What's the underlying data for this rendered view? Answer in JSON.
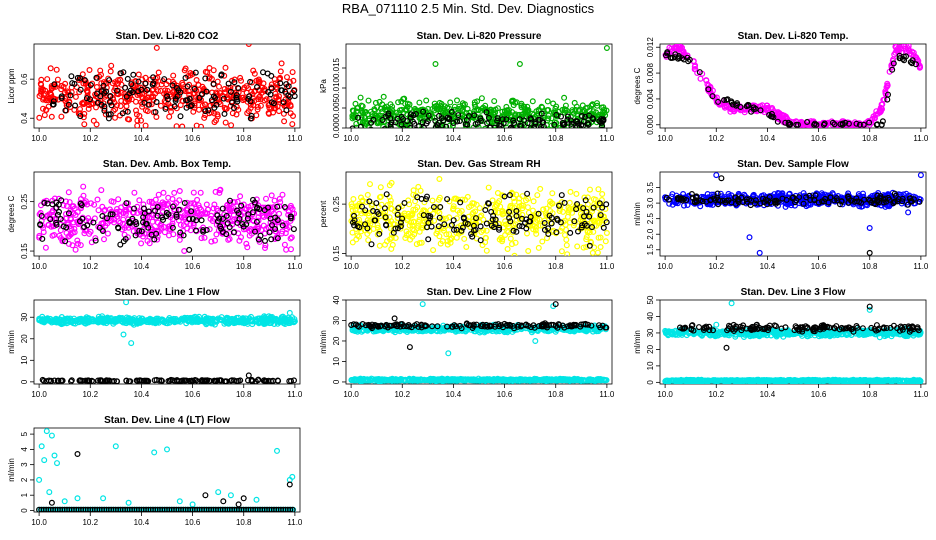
{
  "page_title": "RBA_071110  2.5 Min. Std. Dev. Diagnostics",
  "chart_data": [
    {
      "type": "scatter",
      "title": "Stan. Dev. Li-820 CO2",
      "ylabel": "Licor ppm",
      "xlim": [
        9.98,
        11.02
      ],
      "ylim": [
        0.35,
        0.78
      ],
      "yticks": [
        "0.4",
        "0.6"
      ],
      "ytick_values": [
        0.4,
        0.6
      ],
      "xticks": [
        "10.0",
        "10.2",
        "10.4",
        "10.6",
        "10.8",
        "11.0"
      ],
      "series": [
        {
          "name": "main",
          "color": "#ff0000",
          "pattern": {
            "type": "noise",
            "center": 0.52,
            "spread": 0.1,
            "outliers": [
              [
                10.82,
                0.78
              ],
              [
                10.99,
                0.37
              ],
              [
                10.46,
                0.76
              ]
            ]
          }
        },
        {
          "name": "black",
          "color": "#000000",
          "pattern": {
            "type": "noise",
            "center": 0.52,
            "spread": 0.08
          }
        }
      ]
    },
    {
      "type": "scatter",
      "title": "Stan. Dev. Li-820 Pressure",
      "ylabel": "kPa",
      "xlim": [
        9.98,
        11.02
      ],
      "ylim": [
        0,
        0.021
      ],
      "yticks": [
        "0.000",
        "0.005",
        "0.010",
        "0.015"
      ],
      "ytick_values": [
        0,
        0.005,
        0.01,
        0.015
      ],
      "xticks": [
        "10.0",
        "10.2",
        "10.4",
        "10.6",
        "10.8",
        "11.0"
      ],
      "series": [
        {
          "name": "main",
          "color": "#00b000",
          "pattern": {
            "type": "noise",
            "center": 0.003,
            "spread": 0.003,
            "outliers": [
              [
                10.33,
                0.016
              ],
              [
                10.66,
                0.016
              ],
              [
                11.0,
                0.02
              ]
            ]
          }
        },
        {
          "name": "black",
          "color": "#000000",
          "pattern": {
            "type": "noise",
            "center": 0.0015,
            "spread": 0.0015
          }
        }
      ]
    },
    {
      "type": "scatter",
      "title": "Stan. Dev. Li-820 Temp.",
      "ylabel": "degrees C",
      "xlim": [
        9.98,
        11.02
      ],
      "ylim": [
        -0.0005,
        0.0125
      ],
      "yticks": [
        "0.000",
        "0.004",
        "0.008",
        "0.012"
      ],
      "ytick_values": [
        0,
        0.004,
        0.008,
        0.012
      ],
      "xticks": [
        "10.0",
        "10.2",
        "10.4",
        "10.6",
        "10.8",
        "11.0"
      ],
      "series": [
        {
          "name": "main",
          "color": "#ff00ff",
          "pattern": {
            "type": "curve",
            "points": [
              [
                10.0,
                0.011
              ],
              [
                10.05,
                0.012
              ],
              [
                10.1,
                0.01
              ],
              [
                10.15,
                0.007
              ],
              [
                10.2,
                0.004
              ],
              [
                10.25,
                0.0025
              ],
              [
                10.4,
                0.0025
              ],
              [
                10.5,
                0.0
              ],
              [
                10.8,
                0.0
              ],
              [
                10.85,
                0.003
              ],
              [
                10.9,
                0.0115
              ],
              [
                10.95,
                0.012
              ],
              [
                11.0,
                0.009
              ]
            ],
            "spread": 0.0012
          }
        },
        {
          "name": "black",
          "color": "#000000",
          "pattern": {
            "type": "curve",
            "points": [
              [
                10.0,
                0.011
              ],
              [
                10.1,
                0.01
              ],
              [
                10.2,
                0.004
              ],
              [
                10.3,
                0.003
              ],
              [
                10.5,
                0.0
              ],
              [
                10.85,
                0.0
              ],
              [
                10.9,
                0.011
              ],
              [
                11.0,
                0.009
              ]
            ],
            "spread": 0.0009
          }
        }
      ]
    },
    {
      "type": "scatter",
      "title": "Stan. Dev. Amb. Box Temp.",
      "ylabel": "degrees C",
      "xlim": [
        9.98,
        11.02
      ],
      "ylim": [
        0.14,
        0.31
      ],
      "yticks": [
        "0.15",
        "0.25"
      ],
      "ytick_values": [
        0.15,
        0.25
      ],
      "xticks": [
        "10.0",
        "10.2",
        "10.4",
        "10.6",
        "10.8",
        "11.0"
      ],
      "series": [
        {
          "name": "main",
          "color": "#ff00ff",
          "pattern": {
            "type": "noise",
            "center": 0.215,
            "spread": 0.04
          }
        },
        {
          "name": "black",
          "color": "#000000",
          "pattern": {
            "type": "noise",
            "center": 0.21,
            "spread": 0.035
          }
        }
      ]
    },
    {
      "type": "scatter",
      "title": "Stan. Dev. Gas Stream RH",
      "ylabel": "percent",
      "xlim": [
        9.98,
        11.02
      ],
      "ylim": [
        0.145,
        0.315
      ],
      "yticks": [
        "0.15",
        "0.25"
      ],
      "ytick_values": [
        0.15,
        0.25
      ],
      "xticks": [
        "10.0",
        "10.2",
        "10.4",
        "10.6",
        "10.8",
        "11.0"
      ],
      "series": [
        {
          "name": "main",
          "color": "#ffff00",
          "pattern": {
            "type": "noise",
            "center": 0.22,
            "spread": 0.045
          }
        },
        {
          "name": "black",
          "color": "#000000",
          "pattern": {
            "type": "noise",
            "center": 0.22,
            "spread": 0.035
          }
        }
      ]
    },
    {
      "type": "scatter",
      "title": "Stan. Dev. Sample Flow",
      "ylabel": "ml/min",
      "xlim": [
        9.98,
        11.02
      ],
      "ylim": [
        1.3,
        4.0
      ],
      "yticks": [
        "1.5",
        "2.0",
        "2.5",
        "3.0",
        "3.5"
      ],
      "ytick_values": [
        1.5,
        2.0,
        2.5,
        3.0,
        3.5
      ],
      "xticks": [
        "10.0",
        "10.2",
        "10.4",
        "10.6",
        "10.8",
        "11.0"
      ],
      "series": [
        {
          "name": "main",
          "color": "#0000ff",
          "pattern": {
            "type": "noise",
            "center": 3.1,
            "spread": 0.15,
            "outliers": [
              [
                10.2,
                3.9
              ],
              [
                10.33,
                1.9
              ],
              [
                10.37,
                1.4
              ],
              [
                10.8,
                2.2
              ],
              [
                10.95,
                2.7
              ],
              [
                11.0,
                3.9
              ]
            ]
          }
        },
        {
          "name": "black",
          "color": "#000000",
          "pattern": {
            "type": "noise",
            "center": 3.1,
            "spread": 0.12,
            "outliers": [
              [
                10.22,
                3.8
              ],
              [
                10.8,
                1.4
              ]
            ]
          }
        }
      ]
    },
    {
      "type": "scatter",
      "title": "Stan. Dev. Line 1 Flow",
      "ylabel": "ml/min",
      "xlim": [
        9.98,
        11.02
      ],
      "ylim": [
        -1,
        38
      ],
      "yticks": [
        "0",
        "10",
        "20",
        "30"
      ],
      "ytick_values": [
        0,
        10,
        20,
        30
      ],
      "xticks": [
        "10.0",
        "10.2",
        "10.4",
        "10.6",
        "10.8",
        "11.0"
      ],
      "series": [
        {
          "name": "main",
          "color": "#00e5e5",
          "pattern": {
            "type": "noise",
            "center": 28.5,
            "spread": 1.2,
            "outliers": [
              [
                10.34,
                37
              ],
              [
                10.36,
                18
              ],
              [
                10.33,
                22
              ],
              [
                10.98,
                32
              ]
            ]
          }
        },
        {
          "name": "black",
          "color": "#000000",
          "pattern": {
            "type": "noise",
            "center": 0.5,
            "spread": 0.3,
            "outliers": [
              [
                10.82,
                3
              ]
            ]
          }
        }
      ]
    },
    {
      "type": "scatter",
      "title": "Stan. Dev. Line 2 Flow",
      "ylabel": "ml/min",
      "xlim": [
        9.98,
        11.02
      ],
      "ylim": [
        -1,
        40
      ],
      "yticks": [
        "0",
        "10",
        "20",
        "30",
        "40"
      ],
      "ytick_values": [
        0,
        10,
        20,
        30,
        40
      ],
      "xticks": [
        "10.0",
        "10.2",
        "10.4",
        "10.6",
        "10.8",
        "11.0"
      ],
      "series": [
        {
          "name": "cyan_high",
          "color": "#00e5e5",
          "pattern": {
            "type": "noise",
            "center": 26,
            "spread": 1.2,
            "outliers": [
              [
                10.28,
                38
              ],
              [
                10.38,
                14
              ],
              [
                10.72,
                20
              ],
              [
                10.79,
                37
              ]
            ]
          }
        },
        {
          "name": "cyan_low",
          "color": "#00e5e5",
          "pattern": {
            "type": "noise",
            "center": 1.0,
            "spread": 0.4
          }
        },
        {
          "name": "black",
          "color": "#000000",
          "pattern": {
            "type": "noise",
            "center": 27.5,
            "spread": 0.8,
            "outliers": [
              [
                10.23,
                17
              ],
              [
                10.17,
                31
              ],
              [
                10.8,
                38
              ]
            ]
          }
        }
      ]
    },
    {
      "type": "scatter",
      "title": "Stan. Dev. Line 3 Flow",
      "ylabel": "ml/min",
      "xlim": [
        9.98,
        11.02
      ],
      "ylim": [
        -1,
        50
      ],
      "yticks": [
        "0",
        "10",
        "20",
        "30",
        "40",
        "50"
      ],
      "ytick_values": [
        0,
        10,
        20,
        30,
        40,
        50
      ],
      "xticks": [
        "10.0",
        "10.2",
        "10.4",
        "10.6",
        "10.8",
        "11.0"
      ],
      "series": [
        {
          "name": "cyan_high",
          "color": "#00e5e5",
          "pattern": {
            "type": "noise",
            "center": 30,
            "spread": 1.5,
            "outliers": [
              [
                10.26,
                48
              ],
              [
                10.2,
                35
              ],
              [
                10.8,
                44
              ]
            ]
          }
        },
        {
          "name": "cyan_low",
          "color": "#00e5e5",
          "pattern": {
            "type": "noise",
            "center": 1.0,
            "spread": 0.4
          }
        },
        {
          "name": "black",
          "color": "#000000",
          "pattern": {
            "type": "noise",
            "center": 33,
            "spread": 1.5,
            "outliers": [
              [
                10.24,
                21
              ],
              [
                10.8,
                46
              ]
            ]
          }
        }
      ]
    },
    {
      "type": "scatter",
      "title": "Stan. Dev. Line 4 (LT) Flow",
      "ylabel": "ml/min",
      "xlim": [
        9.98,
        11.02
      ],
      "ylim": [
        -0.1,
        5.4
      ],
      "yticks": [
        "0",
        "1",
        "2",
        "3",
        "4",
        "5"
      ],
      "ytick_values": [
        0,
        1,
        2,
        3,
        4,
        5
      ],
      "xticks": [
        "10.0",
        "10.2",
        "10.4",
        "10.6",
        "10.8",
        "11.0"
      ],
      "series": [
        {
          "name": "main",
          "color": "#00e5e5",
          "pattern": {
            "type": "sparse",
            "base": 0.05,
            "points": [
              [
                10.0,
                2.0
              ],
              [
                10.01,
                4.2
              ],
              [
                10.02,
                3.3
              ],
              [
                10.03,
                5.2
              ],
              [
                10.05,
                4.9
              ],
              [
                10.06,
                3.6
              ],
              [
                10.07,
                3.1
              ],
              [
                10.04,
                1.2
              ],
              [
                10.1,
                0.6
              ],
              [
                10.15,
                0.8
              ],
              [
                10.25,
                0.8
              ],
              [
                10.3,
                4.2
              ],
              [
                10.45,
                3.8
              ],
              [
                10.5,
                4.0
              ],
              [
                10.55,
                0.6
              ],
              [
                10.6,
                0.4
              ],
              [
                10.75,
                1.0
              ],
              [
                10.85,
                0.7
              ],
              [
                10.93,
                3.9
              ],
              [
                10.98,
                2.0
              ],
              [
                10.99,
                2.2
              ],
              [
                10.35,
                0.5
              ],
              [
                10.7,
                1.2
              ]
            ]
          }
        },
        {
          "name": "black",
          "color": "#000000",
          "pattern": {
            "type": "sparse",
            "base": 0.05,
            "points": [
              [
                10.15,
                3.7
              ],
              [
                10.05,
                0.5
              ],
              [
                10.65,
                1.0
              ],
              [
                10.8,
                0.8
              ],
              [
                10.78,
                0.4
              ],
              [
                10.98,
                1.7
              ],
              [
                10.72,
                0.6
              ]
            ]
          }
        }
      ]
    }
  ]
}
